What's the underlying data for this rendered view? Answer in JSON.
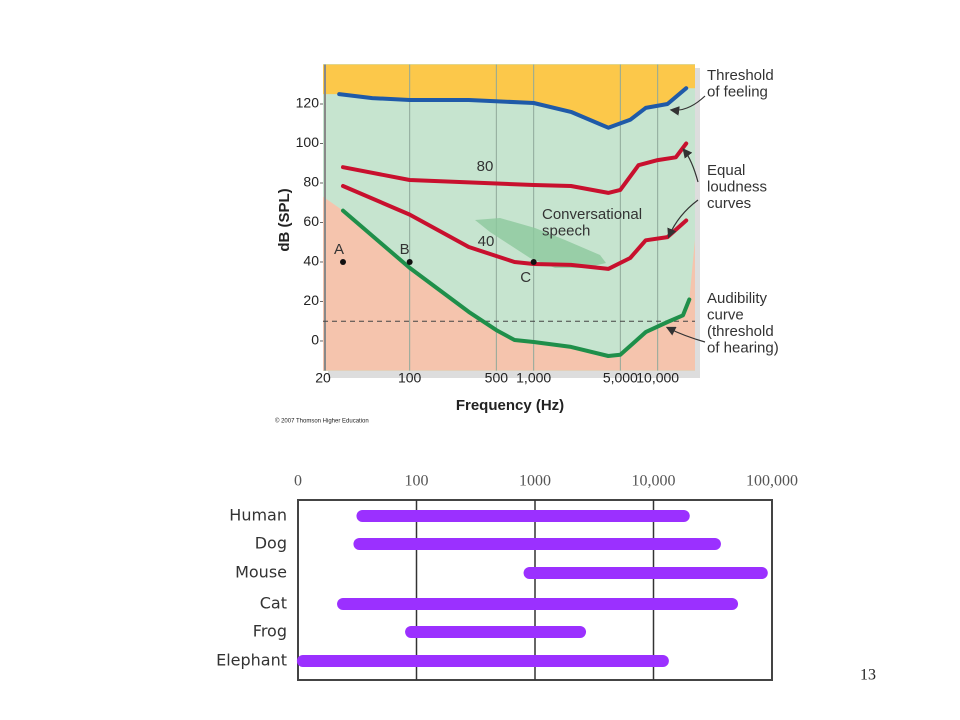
{
  "chart_data": [
    {
      "type": "line",
      "xlabel": "Frequency (Hz)",
      "ylabel": "dB (SPL)",
      "xlim": [
        20,
        20000
      ],
      "ylim": [
        -15,
        140
      ],
      "log_x": true,
      "grid": "x",
      "xticks": [
        20,
        100,
        500,
        {
          "value": 1000,
          "label": "1,000"
        },
        {
          "value": 5000,
          "label": "5,000"
        },
        {
          "value": 10000,
          "label": "10,000"
        }
      ],
      "yticks": [
        0,
        20,
        40,
        60,
        80,
        100,
        120
      ],
      "reference_line": 10,
      "series": [
        {
          "color": "#1f5aa8",
          "x": [
            27,
            50,
            100,
            300,
            1000,
            2000,
            4000,
            6000,
            8000,
            12000,
            17000
          ],
          "y": [
            125,
            123,
            122,
            122,
            120.5,
            116,
            108,
            112,
            118,
            120,
            128
          ]
        },
        {
          "name": "80",
          "color": "#c8102e",
          "x": [
            29,
            100,
            1000,
            2000,
            4000,
            5000,
            7000,
            10000,
            14000,
            17000
          ],
          "y": [
            88,
            81.5,
            79,
            78.5,
            75,
            76.5,
            89,
            91.6,
            93,
            100
          ]
        },
        {
          "name": "40",
          "color": "#c8102e",
          "x": [
            29,
            100,
            300,
            700,
            1000,
            2000,
            4000,
            6000,
            8000,
            12000,
            17000
          ],
          "y": [
            78.5,
            64,
            47.6,
            40,
            39,
            38.5,
            36.5,
            42,
            51,
            52.6,
            61
          ]
        },
        {
          "color": "#1f8f4a",
          "x": [
            29,
            100,
            300,
            500,
            700,
            1000,
            2000,
            4000,
            5000,
            8000,
            12000,
            16000,
            18000
          ],
          "y": [
            66,
            37,
            14.7,
            5.5,
            0.5,
            -0.5,
            -3,
            -7.6,
            -7,
            4.5,
            9.6,
            13,
            21
          ]
        }
      ],
      "points": [
        {
          "label": "A",
          "x": 29,
          "y": 40
        },
        {
          "label": "B",
          "x": 100,
          "y": 40
        },
        {
          "label": "C",
          "x": 1000,
          "y": 40
        }
      ],
      "annotations": [
        {
          "lines": [
            "Threshold",
            "of feeling"
          ]
        },
        {
          "lines": [
            "Equal",
            "loudness",
            "curves"
          ]
        },
        {
          "lines": [
            "Audibility",
            "curve",
            "(threshold",
            "of hearing)"
          ]
        },
        {
          "lines": [
            "Conversational",
            "speech"
          ]
        }
      ],
      "credit": "© 2007 Thomson Higher Education"
    },
    {
      "type": "range-bar",
      "xlim": [
        10,
        100000
      ],
      "log_x": true,
      "grid": "x",
      "color": "#9b30ff",
      "xticks": [
        {
          "value": 10,
          "label": "0"
        },
        100,
        1000,
        {
          "value": 10000,
          "label": "10,000"
        },
        {
          "value": 100000,
          "label": "100,000"
        }
      ],
      "categories": [
        "Human",
        "Dog",
        "Mouse",
        "Cat",
        "Frog",
        "Elephant"
      ],
      "low": [
        35,
        33,
        900,
        24,
        90,
        11
      ],
      "high": [
        18000,
        33000,
        82000,
        46000,
        2400,
        12000
      ]
    }
  ],
  "slide_number": "13"
}
